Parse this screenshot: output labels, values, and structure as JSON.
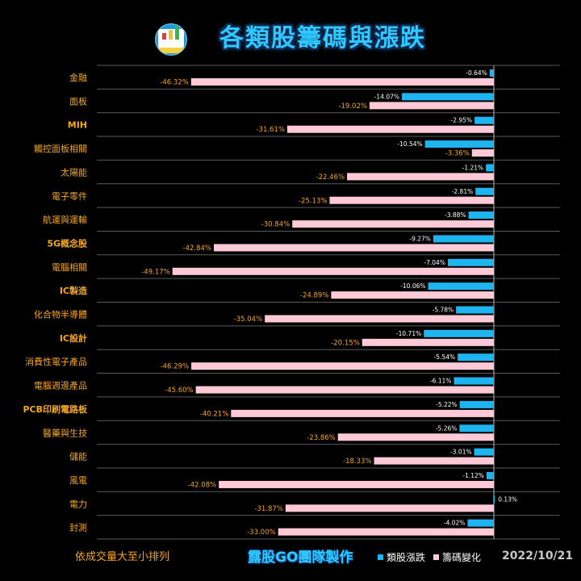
{
  "header": {
    "title": "各類股籌碼與漲跌",
    "logo": "chart-logo"
  },
  "footer": {
    "note": "依成交量大至小排列",
    "credit": "露股GO團隊製作",
    "date": "2022/10/21"
  },
  "chart_data": {
    "type": "bar",
    "orientation": "horizontal",
    "categories": [
      "金融",
      "面板",
      "MIH",
      "觸控面板相關",
      "太陽能",
      "電子零件",
      "航運與運輸",
      "5G概念股",
      "電腦相關",
      "IC製造",
      "化合物半導體",
      "IC設計",
      "消費性電子產品",
      "電腦週邊產品",
      "PCB印刷電路板",
      "醫藥與生技",
      "儲能",
      "風電",
      "電力",
      "封測"
    ],
    "series": [
      {
        "name": "類股漲跌",
        "color": "#1eb4f0",
        "values": [
          -0.64,
          -14.07,
          -2.95,
          -10.54,
          -1.21,
          -2.81,
          -3.88,
          -9.27,
          -7.04,
          -10.06,
          -5.78,
          -10.71,
          -5.54,
          -6.11,
          -5.22,
          -5.26,
          -3.01,
          -1.12,
          0.13,
          -4.02
        ],
        "labels": [
          "-0.64%",
          "-14.07%",
          "-2.95%",
          "-10.54%",
          "-1.21%",
          "-2.81%",
          "-3.88%",
          "-9.27%",
          "-7.04%",
          "-10.06%",
          "-5.78%",
          "-10.71%",
          "-5.54%",
          "-6.11%",
          "-5.22%",
          "-5.26%",
          "-3.01%",
          "-1.12%",
          "0.13%",
          "-4.02%"
        ]
      },
      {
        "name": "籌碼變化",
        "color": "#ffc9d7",
        "values": [
          -46.32,
          -19.02,
          -31.61,
          -3.36,
          -22.46,
          -25.13,
          -30.84,
          -42.84,
          -49.17,
          -24.89,
          -35.04,
          -20.15,
          -46.29,
          -45.6,
          -40.21,
          -23.86,
          -18.33,
          -42.08,
          -31.87,
          -33.0
        ],
        "labels": [
          "-46.32%",
          "-19.02%",
          "-31.61%",
          "-3.36%",
          "-22.46%",
          "-25.13%",
          "-30.84%",
          "-42.84%",
          "-49.17%",
          "-24.89%",
          "-35.04%",
          "-20.15%",
          "-46.29%",
          "-45.60%",
          "-40.21%",
          "-23.86%",
          "-18.33%",
          "-42.08%",
          "-31.87%",
          "-33.00%"
        ]
      }
    ],
    "category_color": "#f5a623",
    "bold_categories": [
      "MIH",
      "5G概念股",
      "IC製造",
      "IC設計",
      "PCB印刷電路板"
    ],
    "legend_position": "bottom",
    "grid": true
  }
}
